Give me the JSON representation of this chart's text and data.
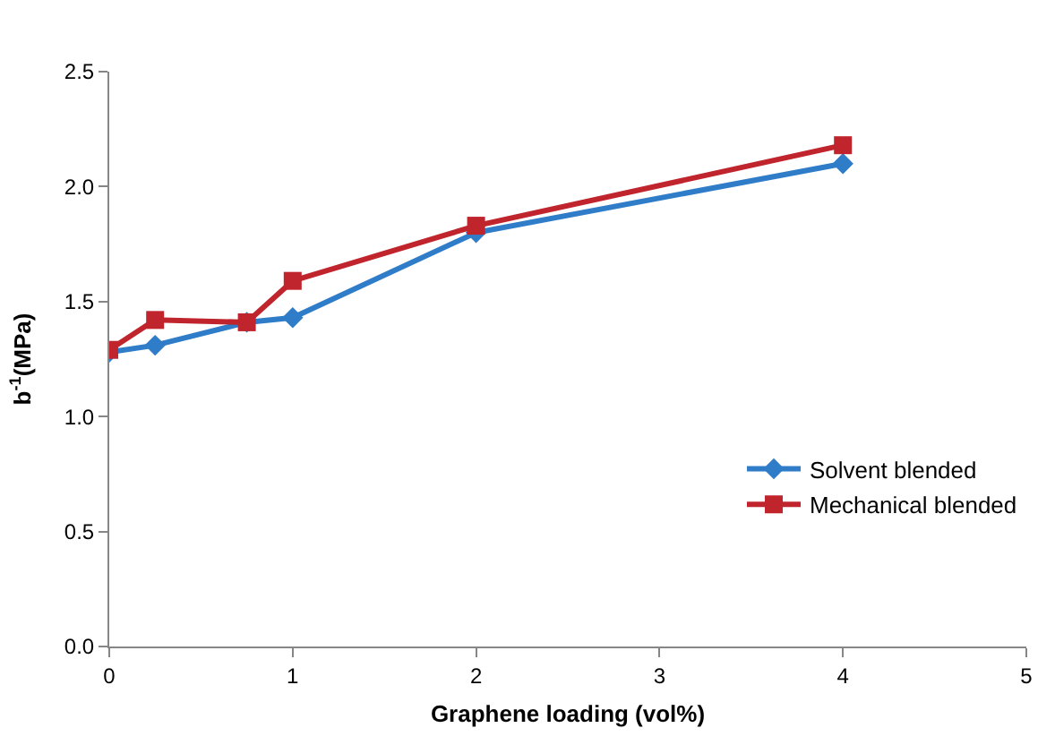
{
  "chart_data": {
    "type": "line",
    "xlabel": "Graphene loading (vol%)",
    "ylabel": "b$^{-1}$(MPa)",
    "x": [
      0,
      0.25,
      0.75,
      1,
      2,
      4
    ],
    "series": [
      {
        "name": "Solvent blended",
        "color": "#2f7cc8",
        "marker": "diamond",
        "values": [
          1.28,
          1.31,
          1.41,
          1.43,
          1.8,
          2.1
        ]
      },
      {
        "name": "Mechanical blended",
        "color": "#c0242c",
        "marker": "square",
        "values": [
          1.29,
          1.42,
          1.41,
          1.59,
          1.83,
          2.18
        ]
      }
    ],
    "xlim": [
      0,
      5
    ],
    "xticks": [
      0,
      1,
      2,
      3,
      4,
      5
    ],
    "ylim": [
      0,
      2.5
    ],
    "yticks": [
      {
        "value": 0,
        "label": "0.0"
      },
      {
        "value": 0.5,
        "label": "0.5"
      },
      {
        "value": 1,
        "label": "1.0"
      },
      {
        "value": 1.5,
        "label": "1.5"
      },
      {
        "value": 2,
        "label": "2.0"
      },
      {
        "value": 2.5,
        "label": "2.5"
      }
    ],
    "legend": "bottom right",
    "line_style": "solid"
  }
}
